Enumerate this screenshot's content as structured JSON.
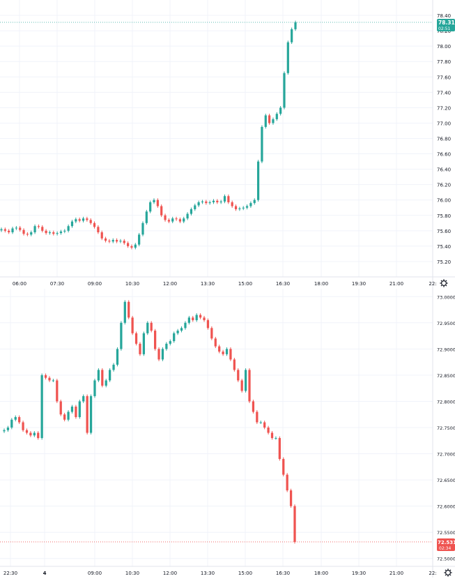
{
  "colors": {
    "up": "#26a69a",
    "down": "#ef5350",
    "grid": "#f0f3fa",
    "axis_text": "#131722",
    "border": "#e0e3eb"
  },
  "icons": {
    "settings": "gear-icon"
  },
  "chart_data": [
    {
      "type": "candlestick",
      "title": "",
      "x_tick_labels": [
        "06:00",
        "07:30",
        "09:00",
        "10:30",
        "12:00",
        "13:30",
        "15:00",
        "16:30",
        "18:00",
        "19:30",
        "21:00",
        "22:"
      ],
      "y_tick_labels": [
        "78.40",
        "78.20",
        "78.00",
        "77.80",
        "77.60",
        "77.40",
        "77.20",
        "77.00",
        "76.80",
        "76.60",
        "76.40",
        "76.20",
        "76.00",
        "75.80",
        "75.60",
        "75.40",
        "75.20"
      ],
      "ylim": [
        75.0,
        78.6
      ],
      "last_price": {
        "value": "78.31",
        "countdown": "02:51",
        "color": "#26a69a"
      },
      "closes": [
        75.62,
        75.6,
        75.58,
        75.63,
        75.64,
        75.61,
        75.56,
        75.55,
        75.58,
        75.66,
        75.65,
        75.6,
        75.57,
        75.58,
        75.56,
        75.57,
        75.59,
        75.6,
        75.66,
        75.72,
        75.75,
        75.73,
        75.76,
        75.74,
        75.7,
        75.65,
        75.58,
        75.5,
        75.47,
        75.46,
        75.48,
        75.46,
        75.47,
        75.44,
        75.4,
        75.38,
        75.42,
        75.55,
        75.7,
        75.85,
        75.97,
        76.0,
        75.92,
        75.8,
        75.74,
        75.72,
        75.76,
        75.75,
        75.72,
        75.76,
        75.82,
        75.88,
        75.93,
        75.97,
        75.98,
        75.96,
        75.97,
        75.99,
        75.97,
        75.98,
        76.05,
        75.97,
        75.92,
        75.88,
        75.89,
        75.9,
        75.92,
        75.96,
        76.0,
        76.5,
        76.95,
        77.1,
        77.0,
        77.05,
        77.12,
        77.2,
        77.65,
        78.05,
        78.22,
        78.31
      ]
    },
    {
      "type": "candlestick",
      "title": "",
      "x_tick_labels": [
        "22:30",
        "4",
        "09:00",
        "10:30",
        "12:00",
        "13:30",
        "15:00",
        "16:30",
        "18:00",
        "19:30",
        "21:00",
        "22:"
      ],
      "y_tick_labels": [
        "73.0000",
        "72.9500",
        "72.9000",
        "72.8500",
        "72.8000",
        "72.7500",
        "72.7000",
        "72.6500",
        "72.6000",
        "72.5500",
        "72.5000"
      ],
      "ylim": [
        72.485,
        73.015
      ],
      "last_price": {
        "value": "72.5317",
        "countdown": "02:34",
        "color": "#ef5350"
      },
      "closes": [
        72.745,
        72.75,
        72.765,
        72.77,
        72.76,
        72.745,
        72.74,
        72.735,
        72.74,
        72.73,
        72.85,
        72.845,
        72.84,
        72.84,
        72.8,
        72.775,
        72.765,
        72.78,
        72.79,
        72.77,
        72.8,
        72.81,
        72.74,
        72.81,
        72.84,
        72.86,
        72.83,
        72.84,
        72.86,
        72.87,
        72.9,
        72.95,
        72.99,
        72.96,
        72.93,
        72.91,
        72.89,
        72.93,
        72.95,
        72.935,
        72.9,
        72.88,
        72.9,
        72.91,
        72.915,
        72.93,
        72.935,
        72.94,
        72.95,
        72.96,
        72.955,
        72.965,
        72.96,
        72.955,
        72.94,
        72.92,
        72.905,
        72.895,
        72.89,
        72.9,
        72.88,
        72.86,
        72.84,
        72.82,
        72.86,
        72.8,
        72.78,
        72.76,
        72.76,
        72.75,
        72.74,
        72.73,
        72.73,
        72.69,
        72.66,
        72.63,
        72.6,
        72.5317
      ]
    }
  ]
}
